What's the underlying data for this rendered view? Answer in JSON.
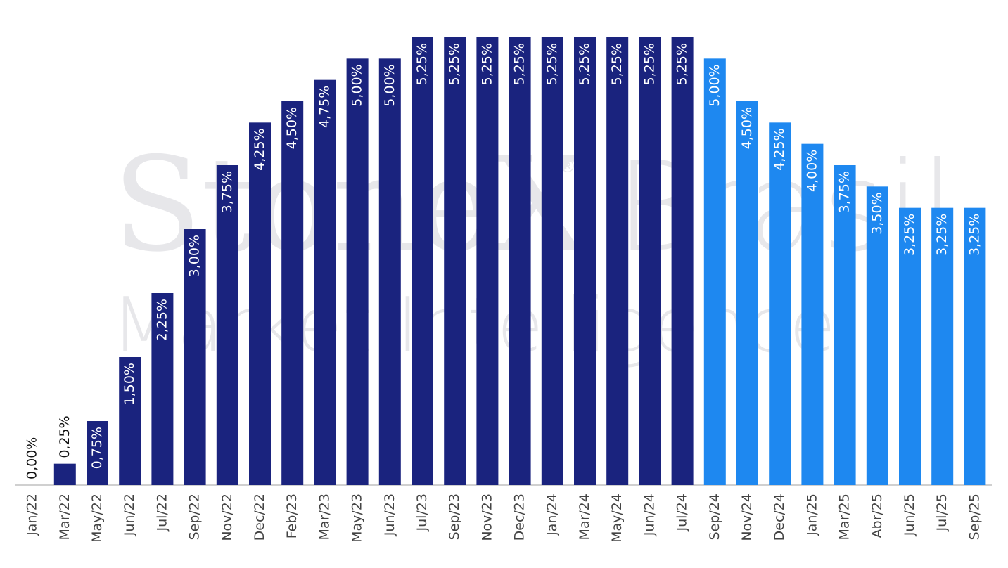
{
  "chart_data": {
    "type": "bar",
    "watermark": {
      "brand": "StoneX",
      "mark": "®",
      "region": "Brasil",
      "tagline": "Market Intelligence"
    },
    "categories": [
      "Jan/22",
      "Mar/22",
      "May/22",
      "Jun/22",
      "Jul/22",
      "Sep/22",
      "Nov/22",
      "Dec/22",
      "Feb/23",
      "Mar/23",
      "May/23",
      "Jun/23",
      "Jul/23",
      "Sep/23",
      "Nov/23",
      "Dec/23",
      "Jan/24",
      "Mar/24",
      "May/24",
      "Jun/24",
      "Jul/24",
      "Sep/24",
      "Nov/24",
      "Dec/24",
      "Jan/25",
      "Mar/25",
      "Abr/25",
      "Jun/25",
      "Jul/25",
      "Sep/25"
    ],
    "values": [
      0,
      0.25,
      0.75,
      1.5,
      2.25,
      3,
      3.75,
      4.25,
      4.5,
      4.75,
      5,
      5,
      5.25,
      5.25,
      5.25,
      5.25,
      5.25,
      5.25,
      5.25,
      5.25,
      5.25,
      5,
      4.5,
      4.25,
      4,
      3.75,
      3.5,
      3.25,
      3.25,
      3.25
    ],
    "value_labels": [
      "0,00%",
      "0,25%",
      "0,75%",
      "1,50%",
      "2,25%",
      "3,00%",
      "3,75%",
      "4,25%",
      "4,50%",
      "4,75%",
      "5,00%",
      "5,00%",
      "5,25%",
      "5,25%",
      "5,25%",
      "5,25%",
      "5,25%",
      "5,25%",
      "5,25%",
      "5,25%",
      "5,25%",
      "5,00%",
      "4,50%",
      "4,25%",
      "4,00%",
      "3,75%",
      "3,50%",
      "3,25%",
      "3,25%",
      "3,25%"
    ],
    "colors": [
      "#1a237e",
      "#1a237e",
      "#1a237e",
      "#1a237e",
      "#1a237e",
      "#1a237e",
      "#1a237e",
      "#1a237e",
      "#1a237e",
      "#1a237e",
      "#1a237e",
      "#1a237e",
      "#1a237e",
      "#1a237e",
      "#1a237e",
      "#1a237e",
      "#1a237e",
      "#1a237e",
      "#1a237e",
      "#1a237e",
      "#1a237e",
      "#1e88f0",
      "#1e88f0",
      "#1e88f0",
      "#1e88f0",
      "#1e88f0",
      "#1e88f0",
      "#1e88f0",
      "#1e88f0",
      "#1e88f0"
    ],
    "ylim": [
      0,
      5.25
    ]
  }
}
